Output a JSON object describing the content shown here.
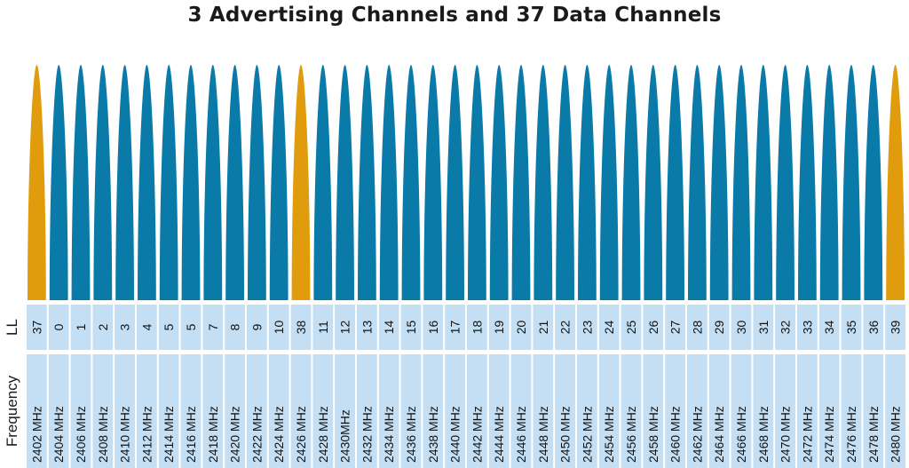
{
  "title": "3 Advertising Channels and 37 Data Channels",
  "row_labels": {
    "ll": "LL",
    "frequency": "Frequency"
  },
  "colors": {
    "advertising": "#E09C0C",
    "data": "#0A7AA8",
    "cell": "#C4DFF4"
  },
  "channels": [
    {
      "ll": "37",
      "frequency": "2402 MHz",
      "type": "advertising"
    },
    {
      "ll": "0",
      "frequency": "2404 MHz",
      "type": "data"
    },
    {
      "ll": "1",
      "frequency": "2406 MHz",
      "type": "data"
    },
    {
      "ll": "2",
      "frequency": "2408 MHz",
      "type": "data"
    },
    {
      "ll": "3",
      "frequency": "2410 MHz",
      "type": "data"
    },
    {
      "ll": "4",
      "frequency": "2412 MHz",
      "type": "data"
    },
    {
      "ll": "5",
      "frequency": "2414 MHz",
      "type": "data"
    },
    {
      "ll": "5",
      "frequency": "2416 MHz",
      "type": "data"
    },
    {
      "ll": "7",
      "frequency": "2418 MHz",
      "type": "data"
    },
    {
      "ll": "8",
      "frequency": "2420 MHz",
      "type": "data"
    },
    {
      "ll": "9",
      "frequency": "2422 MHz",
      "type": "data"
    },
    {
      "ll": "10",
      "frequency": "2424 MHz",
      "type": "data"
    },
    {
      "ll": "38",
      "frequency": "2426 MHz",
      "type": "advertising"
    },
    {
      "ll": "11",
      "frequency": "2428 MHz",
      "type": "data"
    },
    {
      "ll": "12",
      "frequency": "2430MHz",
      "type": "data"
    },
    {
      "ll": "13",
      "frequency": "2432 MHz",
      "type": "data"
    },
    {
      "ll": "14",
      "frequency": "2434 MHz",
      "type": "data"
    },
    {
      "ll": "15",
      "frequency": "2436 MHz",
      "type": "data"
    },
    {
      "ll": "16",
      "frequency": "2438 MHz",
      "type": "data"
    },
    {
      "ll": "17",
      "frequency": "2440 MHz",
      "type": "data"
    },
    {
      "ll": "18",
      "frequency": "2442 MHz",
      "type": "data"
    },
    {
      "ll": "19",
      "frequency": "2444 MHz",
      "type": "data"
    },
    {
      "ll": "20",
      "frequency": "2446 MHz",
      "type": "data"
    },
    {
      "ll": "21",
      "frequency": "2448 MHz",
      "type": "data"
    },
    {
      "ll": "22",
      "frequency": "2450 MHz",
      "type": "data"
    },
    {
      "ll": "23",
      "frequency": "2452 MHz",
      "type": "data"
    },
    {
      "ll": "24",
      "frequency": "2454 MHz",
      "type": "data"
    },
    {
      "ll": "25",
      "frequency": "2456 MHz",
      "type": "data"
    },
    {
      "ll": "26",
      "frequency": "2458 MHz",
      "type": "data"
    },
    {
      "ll": "27",
      "frequency": "2460 MHz",
      "type": "data"
    },
    {
      "ll": "28",
      "frequency": "2462 MHz",
      "type": "data"
    },
    {
      "ll": "29",
      "frequency": "2464 MHz",
      "type": "data"
    },
    {
      "ll": "30",
      "frequency": "2466 MHz",
      "type": "data"
    },
    {
      "ll": "31",
      "frequency": "2468 MHz",
      "type": "data"
    },
    {
      "ll": "32",
      "frequency": "2470 MHz",
      "type": "data"
    },
    {
      "ll": "33",
      "frequency": "2472 MHz",
      "type": "data"
    },
    {
      "ll": "34",
      "frequency": "2474 MHz",
      "type": "data"
    },
    {
      "ll": "35",
      "frequency": "2476 MHz",
      "type": "data"
    },
    {
      "ll": "36",
      "frequency": "2478 MHz",
      "type": "data"
    },
    {
      "ll": "39",
      "frequency": "2480 MHz",
      "type": "advertising"
    }
  ]
}
